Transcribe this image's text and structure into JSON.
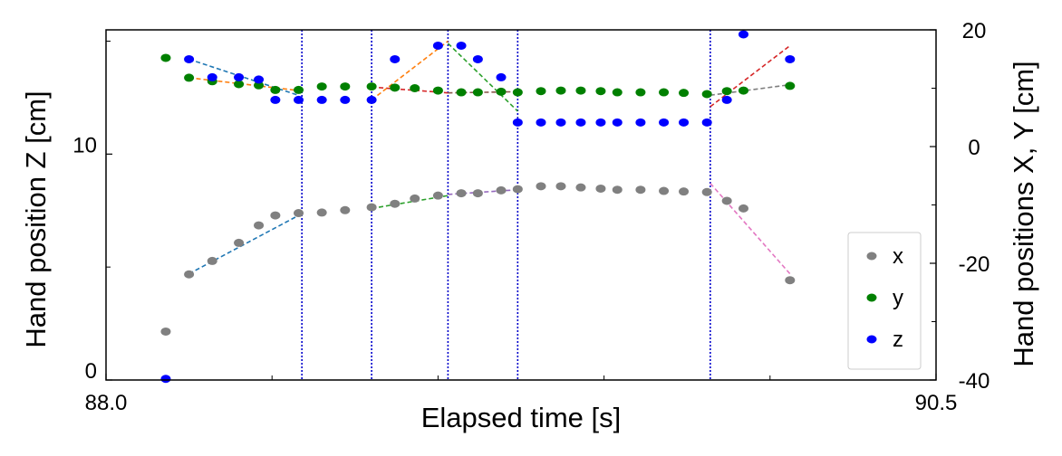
{
  "chart_data": {
    "type": "scatter",
    "title": "",
    "xlabel": "Elapsed time  [s]",
    "ylabel_left": "Hand position Z [cm]",
    "ylabel_right": "Hand positions X, Y [cm]",
    "xlim": [
      88.0,
      90.5
    ],
    "ylim_left": [
      0,
      15.5
    ],
    "ylim_right": [
      -40,
      20
    ],
    "x_tick_labels": [
      {
        "value": 88.0,
        "label": "88.0"
      },
      {
        "value": 90.5,
        "label": "90.5"
      }
    ],
    "x_minor_ticks": [
      88.5,
      89.0,
      89.5,
      90.0
    ],
    "left_ticks": [
      {
        "value": 0,
        "label": "0"
      },
      {
        "value": 10,
        "label": "10"
      }
    ],
    "left_minor_ticks": [
      5,
      15
    ],
    "right_ticks": [
      {
        "value": 20,
        "label": "20"
      },
      {
        "value": 0,
        "label": "0"
      },
      {
        "value": -20,
        "label": "-20"
      },
      {
        "value": -40,
        "label": "-40"
      }
    ],
    "right_minor_ticks": [
      10,
      -10,
      -30
    ],
    "grid": false,
    "legend": {
      "position": "bottom-right",
      "entries": [
        {
          "label": "x",
          "color": "#808080"
        },
        {
          "label": "y",
          "color": "#008000"
        },
        {
          "label": "z",
          "color": "#0000ff"
        }
      ]
    },
    "vlines": [
      88.59,
      88.8,
      89.03,
      89.24,
      89.82
    ],
    "vline_color": "#0000cc",
    "series": [
      {
        "name": "x",
        "axis": "right",
        "color": "#808080",
        "points": [
          [
            88.18,
            -31.7
          ],
          [
            88.25,
            -21.9
          ],
          [
            88.32,
            -19.6
          ],
          [
            88.4,
            -16.5
          ],
          [
            88.46,
            -13.5
          ],
          [
            88.51,
            -11.8
          ],
          [
            88.58,
            -11.4
          ],
          [
            88.65,
            -11.3
          ],
          [
            88.72,
            -10.9
          ],
          [
            88.8,
            -10.4
          ],
          [
            88.87,
            -9.8
          ],
          [
            88.93,
            -8.9
          ],
          [
            89.0,
            -8.4
          ],
          [
            89.07,
            -8.0
          ],
          [
            89.12,
            -8.0
          ],
          [
            89.19,
            -7.5
          ],
          [
            89.24,
            -7.3
          ],
          [
            89.31,
            -6.8
          ],
          [
            89.37,
            -6.8
          ],
          [
            89.43,
            -7.0
          ],
          [
            89.49,
            -7.2
          ],
          [
            89.54,
            -7.4
          ],
          [
            89.61,
            -7.4
          ],
          [
            89.68,
            -7.6
          ],
          [
            89.74,
            -7.7
          ],
          [
            89.81,
            -7.8
          ],
          [
            89.87,
            -9.3
          ],
          [
            89.92,
            -10.6
          ],
          [
            90.06,
            -22.9
          ]
        ]
      },
      {
        "name": "y",
        "axis": "right",
        "color": "#008000",
        "points": [
          [
            88.18,
            15.2
          ],
          [
            88.25,
            11.8
          ],
          [
            88.32,
            11.2
          ],
          [
            88.4,
            10.7
          ],
          [
            88.46,
            10.5
          ],
          [
            88.51,
            9.7
          ],
          [
            88.58,
            9.7
          ],
          [
            88.65,
            10.3
          ],
          [
            88.72,
            10.3
          ],
          [
            88.8,
            10.3
          ],
          [
            88.87,
            10.1
          ],
          [
            88.93,
            10.0
          ],
          [
            89.0,
            9.6
          ],
          [
            89.07,
            9.3
          ],
          [
            89.12,
            9.3
          ],
          [
            89.19,
            9.4
          ],
          [
            89.24,
            9.3
          ],
          [
            89.31,
            9.5
          ],
          [
            89.37,
            9.6
          ],
          [
            89.43,
            9.6
          ],
          [
            89.49,
            9.5
          ],
          [
            89.54,
            9.3
          ],
          [
            89.61,
            9.3
          ],
          [
            89.68,
            9.3
          ],
          [
            89.74,
            9.2
          ],
          [
            89.81,
            9.0
          ],
          [
            89.87,
            9.5
          ],
          [
            89.92,
            9.6
          ],
          [
            90.06,
            10.4
          ]
        ]
      },
      {
        "name": "z",
        "axis": "left",
        "color": "#0000ff",
        "points": [
          [
            88.18,
            0.05
          ],
          [
            88.25,
            14.2
          ],
          [
            88.32,
            13.4
          ],
          [
            88.4,
            13.4
          ],
          [
            88.46,
            13.3
          ],
          [
            88.51,
            12.4
          ],
          [
            88.58,
            12.4
          ],
          [
            88.65,
            12.4
          ],
          [
            88.72,
            12.4
          ],
          [
            88.8,
            12.4
          ],
          [
            88.87,
            14.2
          ],
          [
            89.0,
            14.8
          ],
          [
            89.07,
            14.8
          ],
          [
            89.12,
            14.2
          ],
          [
            89.19,
            13.4
          ],
          [
            89.24,
            11.4
          ],
          [
            89.31,
            11.4
          ],
          [
            89.37,
            11.4
          ],
          [
            89.43,
            11.4
          ],
          [
            89.49,
            11.4
          ],
          [
            89.54,
            11.4
          ],
          [
            89.61,
            11.4
          ],
          [
            89.68,
            11.4
          ],
          [
            89.74,
            11.4
          ],
          [
            89.81,
            11.4
          ],
          [
            89.87,
            12.4
          ],
          [
            89.92,
            15.3
          ],
          [
            90.06,
            14.2
          ]
        ]
      }
    ],
    "fit_lines": [
      {
        "axis": "right",
        "color": "#1f77b4",
        "from": [
          88.25,
          -21.8
        ],
        "to": [
          88.58,
          -11.8
        ]
      },
      {
        "axis": "left",
        "color": "#1f77b4",
        "from": [
          88.25,
          14.2
        ],
        "to": [
          88.58,
          12.6
        ]
      },
      {
        "axis": "right",
        "color": "#ff7f0e",
        "from": [
          88.25,
          11.8
        ],
        "to": [
          88.58,
          9.6
        ]
      },
      {
        "axis": "right",
        "color": "#2ca02c",
        "from": [
          88.8,
          -10.6
        ],
        "to": [
          89.03,
          -8.4
        ]
      },
      {
        "axis": "right",
        "color": "#d62728",
        "from": [
          88.8,
          10.2
        ],
        "to": [
          89.03,
          9.2
        ]
      },
      {
        "axis": "left",
        "color": "#ff7f0e",
        "from": [
          88.8,
          12.4
        ],
        "to": [
          89.03,
          15.0
        ]
      },
      {
        "axis": "right",
        "color": "#9467bd",
        "from": [
          89.03,
          -8.2
        ],
        "to": [
          89.24,
          -7.4
        ]
      },
      {
        "axis": "right",
        "color": "#8c564b",
        "from": [
          89.03,
          9.2
        ],
        "to": [
          89.24,
          9.4
        ]
      },
      {
        "axis": "left",
        "color": "#2ca02c",
        "from": [
          89.03,
          14.9
        ],
        "to": [
          89.24,
          11.9
        ]
      },
      {
        "axis": "right",
        "color": "#e377c2",
        "from": [
          89.82,
          -6.3
        ],
        "to": [
          90.06,
          -21.8
        ]
      },
      {
        "axis": "right",
        "color": "#7f7f7f",
        "from": [
          89.82,
          8.8
        ],
        "to": [
          90.06,
          10.6
        ]
      },
      {
        "axis": "left",
        "color": "#d62728",
        "from": [
          89.82,
          12.1
        ],
        "to": [
          90.06,
          14.8
        ]
      }
    ]
  }
}
